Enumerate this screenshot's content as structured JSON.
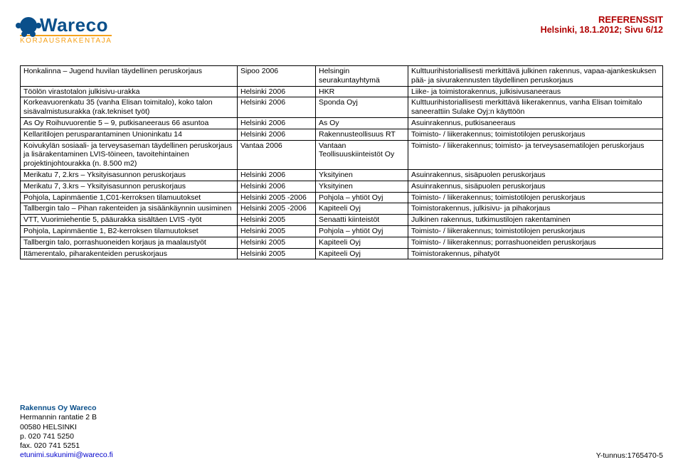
{
  "header": {
    "logo_text": "Wareco",
    "logo_sub": "KORJAUSRAKENTAJA",
    "title": "REFERENSSIT",
    "subtitle": "Helsinki, 18.1.2012;  Sivu 6/12"
  },
  "rows": [
    {
      "c1": "Honkalinna – Jugend huvilan täydellinen peruskorjaus",
      "c2": "Sipoo 2006",
      "c3": "Helsingin seurakuntayhtymä",
      "c4": "Kulttuurihistoriallisesti merkittävä julkinen rakennus, vapaa-ajankeskuksen pää- ja sivurakennusten täydellinen peruskorjaus"
    },
    {
      "c1": "Töölön virastotalon julkisivu-urakka",
      "c2": "Helsinki 2006",
      "c3": "HKR",
      "c4": "Liike- ja toimistorakennus, julkisivusaneeraus"
    },
    {
      "c1": "Korkeavuorenkatu 35 (vanha Elisan toimitalo), koko talon sisävalmistusurakka (rak.tekniset työt)",
      "c2": "Helsinki 2006",
      "c3": "Sponda Oyj",
      "c4": "Kulttuurihistoriallisesti merkittävä liikerakennus, vanha Elisan toimitalo saneerattiin Sulake Oyj:n käyttöön"
    },
    {
      "c1": "As Oy Roihuvuorentie 5 – 9, putkisaneeraus 66 asuntoa",
      "c2": "Helsinki 2006",
      "c3": "As Oy",
      "c4": "Asuinrakennus, putkisaneeraus"
    },
    {
      "c1": "Kellaritilojen perusparantaminen Unioninkatu 14",
      "c2": "Helsinki 2006",
      "c3": "Rakennusteollisuus RT",
      "c4": "Toimisto- / liikerakennus; toimistotilojen peruskorjaus"
    },
    {
      "c1": "Koivukylän sosiaali- ja terveysaseman täydellinen peruskorjaus ja lisärakentaminen LVIS-töineen, tavoitehintainen projektinjohtourakka (n. 8.500 m2)",
      "c2": "Vantaa 2006",
      "c3": "Vantaan Teollisuuskiinteistöt Oy",
      "c4": "Toimisto- / liikerakennus; toimisto- ja terveysasematilojen peruskorjaus"
    },
    {
      "c1": "Merikatu 7, 2.krs – Yksityisasunnon peruskorjaus",
      "c2": "Helsinki 2006",
      "c3": "Yksityinen",
      "c4": "Asuinrakennus, sisäpuolen peruskorjaus"
    },
    {
      "c1": "Merikatu 7, 3.krs – Yksityisasunnon peruskorjaus",
      "c2": "Helsinki 2006",
      "c3": "Yksityinen",
      "c4": "Asuinrakennus, sisäpuolen peruskorjaus"
    },
    {
      "c1": "Pohjola, Lapinmäentie 1,C01-kerroksen tilamuutokset",
      "c2": "Helsinki 2005 -2006",
      "c3": "Pohjola – yhtiöt Oyj",
      "c4": "Toimisto- / liikerakennus; toimistotilojen peruskorjaus"
    },
    {
      "c1": "Tallbergin talo – Pihan rakenteiden ja sisäänkäynnin uusiminen",
      "c2": "Helsinki 2005 -2006",
      "c3": "Kapiteeli Oyj",
      "c4": "Toimistorakennus, julkisivu- ja pihakorjaus"
    },
    {
      "c1": "VTT, Vuorimiehentie 5, pääurakka sisältäen LVIS -työt",
      "c2": "Helsinki 2005",
      "c3": "Senaatti kiinteistöt",
      "c4": "Julkinen rakennus, tutkimustilojen rakentaminen"
    },
    {
      "c1": "Pohjola, Lapinmäentie 1, B2-kerroksen tilamuutokset",
      "c2": "Helsinki 2005",
      "c3": "Pohjola – yhtiöt Oyj",
      "c4": "Toimisto- / liikerakennus; toimistotilojen peruskorjaus"
    },
    {
      "c1": "Tallbergin talo, porrashuoneiden korjaus ja maalaustyöt",
      "c2": "Helsinki 2005",
      "c3": "Kapiteeli Oyj",
      "c4": "Toimisto- / liikerakennus; porrashuoneiden peruskorjaus"
    },
    {
      "c1": "Itämerentalo, piharakenteiden peruskorjaus",
      "c2": "Helsinki 2005",
      "c3": "Kapiteeli Oyj",
      "c4": "Toimistorakennus, pihatyöt"
    }
  ],
  "footer": {
    "company": "Rakennus Oy Wareco",
    "addr1": "Hermannin rantatie 2 B",
    "addr2": "00580 HELSINKI",
    "phone": "p.   020 741 5250",
    "fax": "fax. 020 741 5251",
    "email": "etunimi.sukunimi@wareco.fi",
    "ytunnus": "Y-tunnus:1765470-5"
  }
}
